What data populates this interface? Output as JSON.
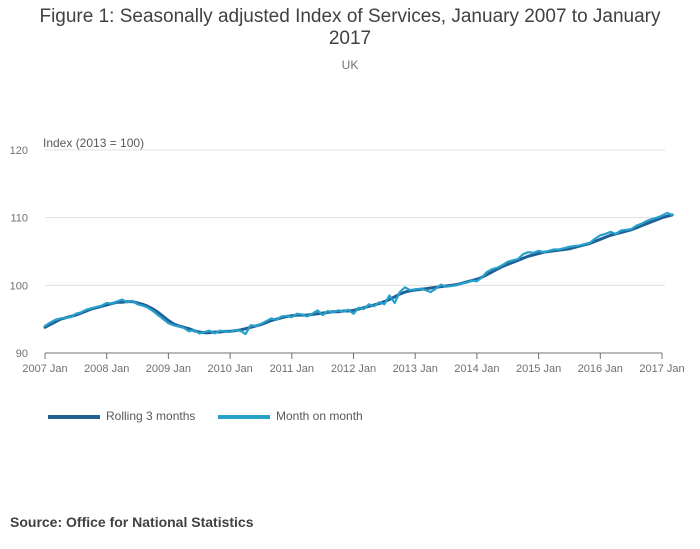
{
  "title": "Figure 1: Seasonally adjusted Index of Services, January 2007 to January 2017",
  "subtitle": "UK",
  "source": "Source: Office for National Statistics",
  "colors": {
    "rolling": "#206095",
    "monthly": "#27a0cc",
    "grid": "#e0e0e0",
    "axis": "#707071"
  },
  "chart_data": {
    "type": "line",
    "title": "Figure 1: Seasonally adjusted Index of Services, January 2007 to January 2017",
    "ylabel": "Index (2013 = 100)",
    "xlabel": "",
    "ylim": [
      90,
      120
    ],
    "yticks": [
      90,
      100,
      110,
      120
    ],
    "xticks": [
      "2007 Jan",
      "2008 Jan",
      "2009 Jan",
      "2010 Jan",
      "2011 Jan",
      "2012 Jan",
      "2013 Jan",
      "2014 Jan",
      "2015 Jan",
      "2016 Jan",
      "2017 Jan"
    ],
    "grid": true,
    "legend_position": "bottom-left",
    "x_start": "2007 Jan",
    "x_frequency": "monthly",
    "series": [
      {
        "name": "Rolling 3 months",
        "key": "rolling",
        "values": [
          93.8,
          94.2,
          94.6,
          95.0,
          95.2,
          95.4,
          95.6,
          95.9,
          96.2,
          96.5,
          96.7,
          96.9,
          97.1,
          97.3,
          97.5,
          97.5,
          97.6,
          97.6,
          97.4,
          97.2,
          96.9,
          96.5,
          96.0,
          95.4,
          94.8,
          94.3,
          94.0,
          93.8,
          93.6,
          93.3,
          93.1,
          93.0,
          93.0,
          93.1,
          93.1,
          93.2,
          93.2,
          93.3,
          93.4,
          93.6,
          93.8,
          94.0,
          94.2,
          94.5,
          94.8,
          95.0,
          95.2,
          95.4,
          95.5,
          95.6,
          95.6,
          95.6,
          95.7,
          95.8,
          95.9,
          96.0,
          96.1,
          96.1,
          96.2,
          96.2,
          96.3,
          96.5,
          96.7,
          96.9,
          97.1,
          97.3,
          97.6,
          97.9,
          98.3,
          98.7,
          99.0,
          99.2,
          99.3,
          99.4,
          99.5,
          99.6,
          99.7,
          99.8,
          99.9,
          100.0,
          100.1,
          100.3,
          100.5,
          100.7,
          100.9,
          101.2,
          101.6,
          102.0,
          102.4,
          102.8,
          103.1,
          103.4,
          103.7,
          104.0,
          104.3,
          104.5,
          104.7,
          104.9,
          105.0,
          105.1,
          105.2,
          105.3,
          105.4,
          105.6,
          105.8,
          106.0,
          106.2,
          106.5,
          106.8,
          107.1,
          107.4,
          107.6,
          107.8,
          108.0,
          108.2,
          108.5,
          108.8,
          109.1,
          109.4,
          109.7,
          110.0,
          110.2,
          110.4
        ]
      },
      {
        "name": "Month on month",
        "key": "monthly",
        "values": [
          94.0,
          94.5,
          94.9,
          95.1,
          95.2,
          95.3,
          95.8,
          96.0,
          96.4,
          96.6,
          96.8,
          97.0,
          97.4,
          97.3,
          97.6,
          97.9,
          97.5,
          97.7,
          97.2,
          97.0,
          96.7,
          96.2,
          95.6,
          95.0,
          94.4,
          94.1,
          93.9,
          93.7,
          93.2,
          93.4,
          92.9,
          93.1,
          93.3,
          92.9,
          93.3,
          93.2,
          93.1,
          93.4,
          93.3,
          92.8,
          94.1,
          94.0,
          94.3,
          94.7,
          95.1,
          94.9,
          95.4,
          95.5,
          95.3,
          95.8,
          95.7,
          95.4,
          95.8,
          96.3,
          95.6,
          96.2,
          96.0,
          96.3,
          96.1,
          96.4,
          95.8,
          96.7,
          96.5,
          97.2,
          96.9,
          97.5,
          97.2,
          98.5,
          97.4,
          99.0,
          99.7,
          99.3,
          99.4,
          99.5,
          99.3,
          99.0,
          99.5,
          100.1,
          99.8,
          99.9,
          100.0,
          100.3,
          100.4,
          100.7,
          100.6,
          101.2,
          102.0,
          102.4,
          102.6,
          103.0,
          103.5,
          103.7,
          103.9,
          104.6,
          104.9,
          104.8,
          105.1,
          104.9,
          105.1,
          105.3,
          105.3,
          105.5,
          105.7,
          105.8,
          105.9,
          106.1,
          106.3,
          106.9,
          107.4,
          107.6,
          107.9,
          107.6,
          108.1,
          108.2,
          108.3,
          108.8,
          109.1,
          109.5,
          109.8,
          110.0,
          110.3,
          110.7,
          110.4
        ]
      }
    ]
  }
}
